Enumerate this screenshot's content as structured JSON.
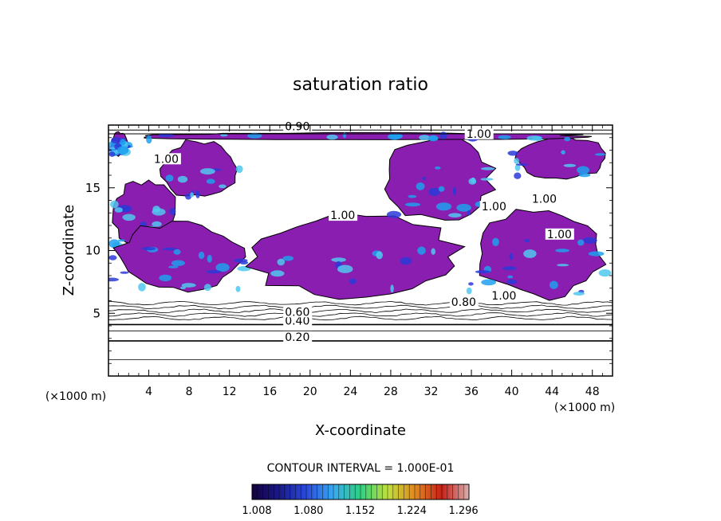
{
  "chart_data": {
    "type": "heatmap",
    "title": "saturation ratio",
    "xlabel": "X-coordinate",
    "ylabel": "Z-coordinate",
    "x_unit_left": "(×1000 m)",
    "x_unit_right": "(×1000 m)",
    "xlim": [
      0,
      50
    ],
    "ylim": [
      0,
      20
    ],
    "x_ticks": [
      4,
      8,
      12,
      16,
      20,
      24,
      28,
      32,
      36,
      40,
      44,
      48
    ],
    "y_ticks": [
      5,
      10,
      15
    ],
    "contour_interval_text": "CONTOUR INTERVAL = 1.000E-01",
    "contour_labels": [
      {
        "text": "0.20",
        "x": 17.5,
        "z": 2.8
      },
      {
        "text": "0.40",
        "x": 17.5,
        "z": 4.1
      },
      {
        "text": "0.60",
        "x": 17.5,
        "z": 4.8
      },
      {
        "text": "0.80",
        "x": 34.0,
        "z": 5.6
      },
      {
        "text": "1.00",
        "x": 38.0,
        "z": 6.1
      },
      {
        "text": "1.00",
        "x": 22.0,
        "z": 12.5
      },
      {
        "text": "1.00",
        "x": 37.0,
        "z": 13.2
      },
      {
        "text": "1.00",
        "x": 42.0,
        "z": 13.8
      },
      {
        "text": "1.00",
        "x": 43.5,
        "z": 11.0
      },
      {
        "text": "1.00",
        "x": 4.5,
        "z": 17.0
      },
      {
        "text": "1.00",
        "x": 35.5,
        "z": 19.0
      },
      {
        "text": "0.90",
        "x": 17.5,
        "z": 19.6
      }
    ],
    "colorbar": {
      "ticks": [
        "1.008",
        "1.080",
        "1.152",
        "1.224",
        "1.296"
      ],
      "colors": [
        "#120040",
        "#1a1a88",
        "#2a4adc",
        "#38aaf0",
        "#2fd080",
        "#c0e03c",
        "#e08a20",
        "#c82018",
        "#d8b0b0"
      ]
    },
    "fill_color": "#8a1eb0",
    "high_colors": [
      "#2a3ad8",
      "#1ea0ee",
      "#50c8f0"
    ],
    "supersaturated_regions": [
      {
        "z_min": 17.5,
        "z_max": 19.5,
        "x_min": 0.2,
        "x_max": 2.0
      },
      {
        "z_min": 14.0,
        "z_max": 19.0,
        "x_min": 5.0,
        "x_max": 13.2
      },
      {
        "z_min": 10.0,
        "z_max": 15.8,
        "x_min": 0.2,
        "x_max": 7.0
      },
      {
        "z_min": 6.5,
        "z_max": 12.5,
        "x_min": 0.2,
        "x_max": 14.0
      },
      {
        "z_min": 6.0,
        "z_max": 13.0,
        "x_min": 12.5,
        "x_max": 36.0
      },
      {
        "z_min": 12.2,
        "z_max": 19.2,
        "x_min": 27.0,
        "x_max": 38.5
      },
      {
        "z_min": 15.5,
        "z_max": 19.2,
        "x_min": 40.0,
        "x_max": 49.8
      },
      {
        "z_min": 6.0,
        "z_max": 13.5,
        "x_min": 36.0,
        "x_max": 49.8
      },
      {
        "z_min": 18.8,
        "z_max": 19.4,
        "x_min": 0.2,
        "x_max": 49.8
      }
    ]
  }
}
